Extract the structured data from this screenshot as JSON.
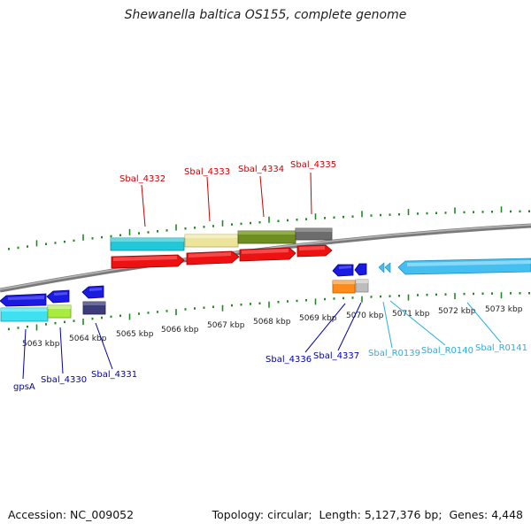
{
  "title": "Shewanella baltica OS155, complete genome",
  "footer": {
    "accession_label": "Accession:",
    "accession": "NC_009052",
    "topology_label": "Topology:",
    "topology": "circular",
    "length_label": "Length:",
    "length": "5,127,376 bp",
    "genes_label": "Genes:",
    "genes": "4,448"
  },
  "colors": {
    "backbone": "#8a8a8a",
    "tick": "#1f8a1f",
    "forward_label": "#cc0000",
    "reverse_label": "#0000aa",
    "rna_label": "#2aaee0"
  },
  "scale": {
    "ticks_kbp": [
      "5063 kbp",
      "5064 kbp",
      "5065 kbp",
      "5066 kbp",
      "5067 kbp",
      "5068 kbp",
      "5069 kbp",
      "5070 kbp",
      "5071 kbp",
      "5072 kbp",
      "5073 kbp"
    ]
  },
  "features": {
    "forward_labels": [
      "Sbal_4332",
      "Sbal_4333",
      "Sbal_4334",
      "Sbal_4335"
    ],
    "reverse_labels": [
      "gpsA",
      "Sbal_4330",
      "Sbal_4331",
      "Sbal_4336",
      "Sbal_4337"
    ],
    "rna_labels": [
      "Sbal_R0139",
      "Sbal_R0140",
      "Sbal_R0141"
    ],
    "forward_cog_colors": [
      "#22c8d8",
      "#ece49a",
      "#6e8e22",
      "#6c6c6c"
    ],
    "gene_color_forward": "#ee1111",
    "gene_color_reverse": "#1a1ae0",
    "rna_color": "#45bff0"
  }
}
